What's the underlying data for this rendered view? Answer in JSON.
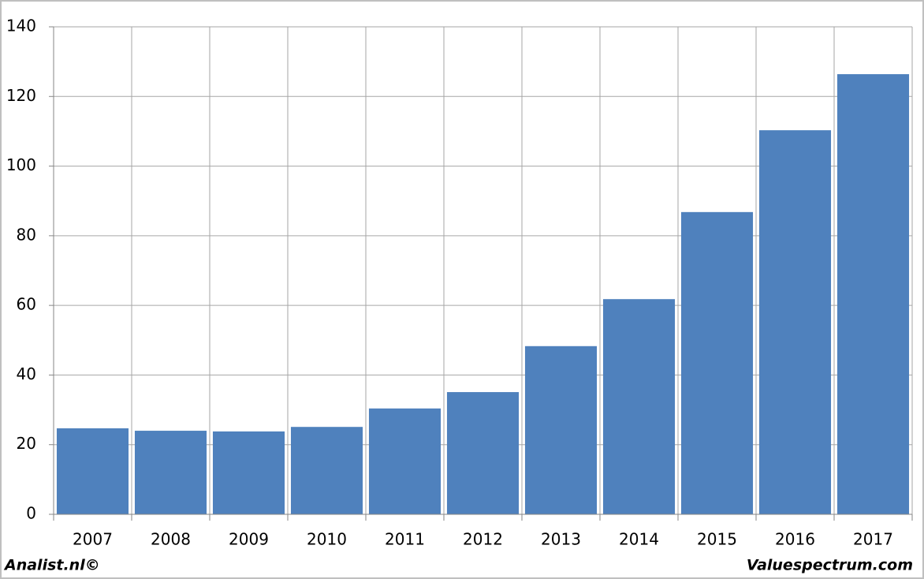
{
  "chart_data": {
    "type": "bar",
    "categories": [
      "2007",
      "2008",
      "2009",
      "2010",
      "2011",
      "2012",
      "2013",
      "2014",
      "2015",
      "2016",
      "2017"
    ],
    "values": [
      24.7,
      24.0,
      23.8,
      25.1,
      30.4,
      35.1,
      48.3,
      61.8,
      86.8,
      110.3,
      126.4
    ],
    "color": "#4f81bd",
    "ylim": [
      0,
      140
    ],
    "yticks": [
      0,
      20,
      40,
      60,
      80,
      100,
      120,
      140
    ],
    "grid": true,
    "credits": [
      "Analist.nl©",
      "Valuespectrum.com"
    ]
  }
}
